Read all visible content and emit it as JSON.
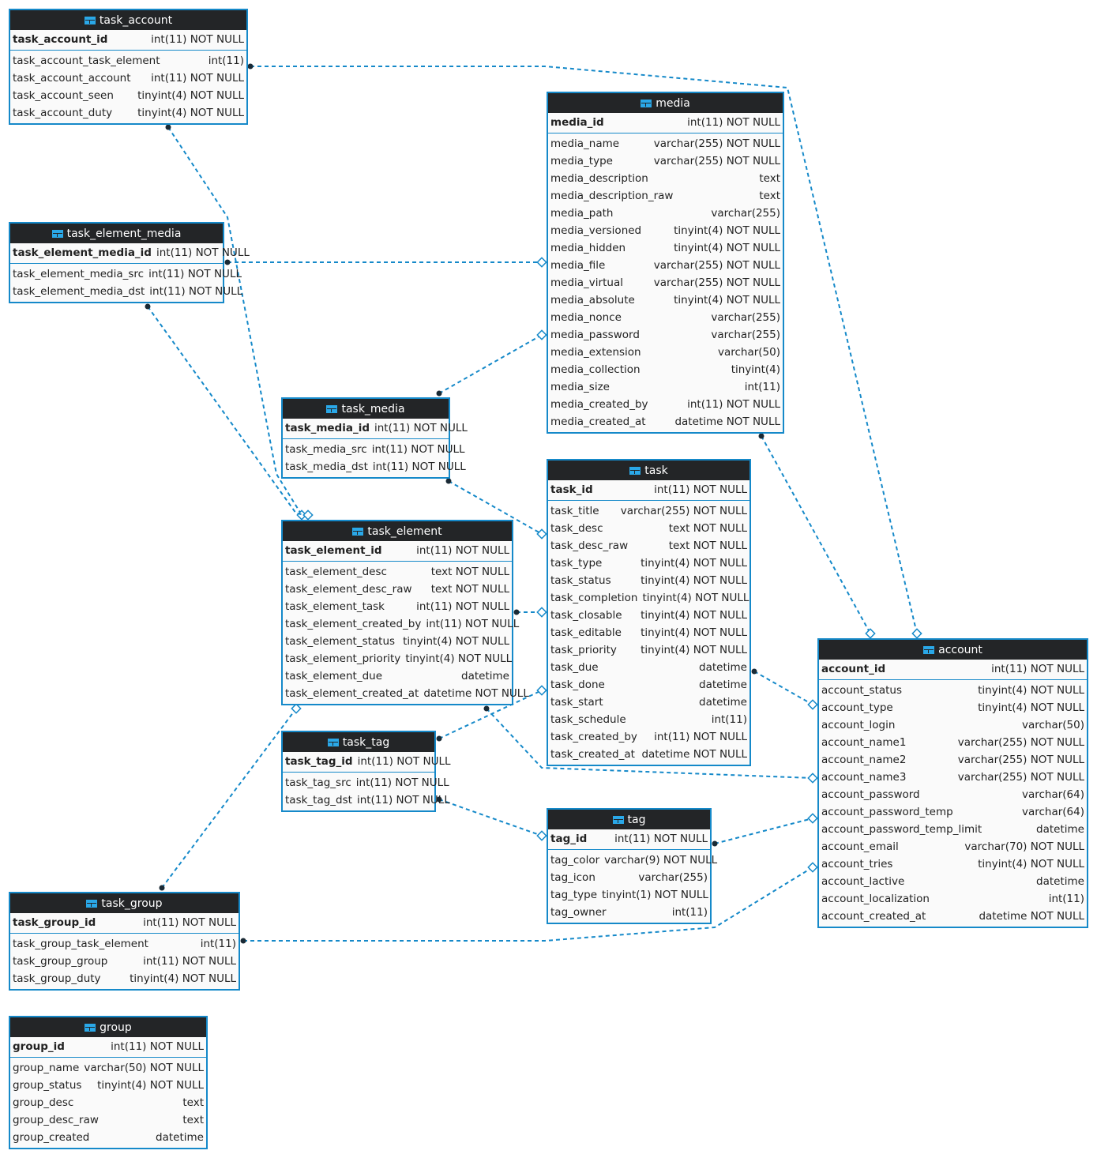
{
  "accent_color": "#1589c9",
  "header_color": "#232527",
  "table_icon": "table-icon",
  "tables": [
    {
      "name": "task_account",
      "pk": [
        "task_account_id",
        "int(11) NOT NULL"
      ],
      "columns": [
        [
          "task_account_task_element",
          "int(11)"
        ],
        [
          "task_account_account",
          "int(11) NOT NULL"
        ],
        [
          "task_account_seen",
          "tinyint(4) NOT NULL"
        ],
        [
          "task_account_duty",
          "tinyint(4) NOT NULL"
        ]
      ]
    },
    {
      "name": "task_element_media",
      "pk": [
        "task_element_media_id",
        "int(11) NOT NULL"
      ],
      "columns": [
        [
          "task_element_media_src",
          "int(11) NOT NULL"
        ],
        [
          "task_element_media_dst",
          "int(11) NOT NULL"
        ]
      ]
    },
    {
      "name": "task_media",
      "pk": [
        "task_media_id",
        "int(11) NOT NULL"
      ],
      "columns": [
        [
          "task_media_src",
          "int(11) NOT NULL"
        ],
        [
          "task_media_dst",
          "int(11) NOT NULL"
        ]
      ]
    },
    {
      "name": "task_element",
      "pk": [
        "task_element_id",
        "int(11) NOT NULL"
      ],
      "columns": [
        [
          "task_element_desc",
          "text NOT NULL"
        ],
        [
          "task_element_desc_raw",
          "text NOT NULL"
        ],
        [
          "task_element_task",
          "int(11) NOT NULL"
        ],
        [
          "task_element_created_by",
          "int(11) NOT NULL"
        ],
        [
          "task_element_status",
          "tinyint(4) NOT NULL"
        ],
        [
          "task_element_priority",
          "tinyint(4) NOT NULL"
        ],
        [
          "task_element_due",
          "datetime"
        ],
        [
          "task_element_created_at",
          "datetime NOT NULL"
        ]
      ]
    },
    {
      "name": "task_tag",
      "pk": [
        "task_tag_id",
        "int(11) NOT NULL"
      ],
      "columns": [
        [
          "task_tag_src",
          "int(11) NOT NULL"
        ],
        [
          "task_tag_dst",
          "int(11) NOT NULL"
        ]
      ]
    },
    {
      "name": "task_group",
      "pk": [
        "task_group_id",
        "int(11) NOT NULL"
      ],
      "columns": [
        [
          "task_group_task_element",
          "int(11)"
        ],
        [
          "task_group_group",
          "int(11) NOT NULL"
        ],
        [
          "task_group_duty",
          "tinyint(4) NOT NULL"
        ]
      ]
    },
    {
      "name": "group",
      "pk": [
        "group_id",
        "int(11) NOT NULL"
      ],
      "columns": [
        [
          "group_name",
          "varchar(50) NOT NULL"
        ],
        [
          "group_status",
          "tinyint(4) NOT NULL"
        ],
        [
          "group_desc",
          "text"
        ],
        [
          "group_desc_raw",
          "text"
        ],
        [
          "group_created",
          "datetime"
        ]
      ]
    },
    {
      "name": "media",
      "pk": [
        "media_id",
        "int(11) NOT NULL"
      ],
      "columns": [
        [
          "media_name",
          "varchar(255) NOT NULL"
        ],
        [
          "media_type",
          "varchar(255) NOT NULL"
        ],
        [
          "media_description",
          "text"
        ],
        [
          "media_description_raw",
          "text"
        ],
        [
          "media_path",
          "varchar(255)"
        ],
        [
          "media_versioned",
          "tinyint(4) NOT NULL"
        ],
        [
          "media_hidden",
          "tinyint(4) NOT NULL"
        ],
        [
          "media_file",
          "varchar(255) NOT NULL"
        ],
        [
          "media_virtual",
          "varchar(255) NOT NULL"
        ],
        [
          "media_absolute",
          "tinyint(4) NOT NULL"
        ],
        [
          "media_nonce",
          "varchar(255)"
        ],
        [
          "media_password",
          "varchar(255)"
        ],
        [
          "media_extension",
          "varchar(50)"
        ],
        [
          "media_collection",
          "tinyint(4)"
        ],
        [
          "media_size",
          "int(11)"
        ],
        [
          "media_created_by",
          "int(11) NOT NULL"
        ],
        [
          "media_created_at",
          "datetime NOT NULL"
        ]
      ]
    },
    {
      "name": "task",
      "pk": [
        "task_id",
        "int(11) NOT NULL"
      ],
      "columns": [
        [
          "task_title",
          "varchar(255) NOT NULL"
        ],
        [
          "task_desc",
          "text NOT NULL"
        ],
        [
          "task_desc_raw",
          "text NOT NULL"
        ],
        [
          "task_type",
          "tinyint(4) NOT NULL"
        ],
        [
          "task_status",
          "tinyint(4) NOT NULL"
        ],
        [
          "task_completion",
          "tinyint(4) NOT NULL"
        ],
        [
          "task_closable",
          "tinyint(4) NOT NULL"
        ],
        [
          "task_editable",
          "tinyint(4) NOT NULL"
        ],
        [
          "task_priority",
          "tinyint(4) NOT NULL"
        ],
        [
          "task_due",
          "datetime"
        ],
        [
          "task_done",
          "datetime"
        ],
        [
          "task_start",
          "datetime"
        ],
        [
          "task_schedule",
          "int(11)"
        ],
        [
          "task_created_by",
          "int(11) NOT NULL"
        ],
        [
          "task_created_at",
          "datetime NOT NULL"
        ]
      ]
    },
    {
      "name": "tag",
      "pk": [
        "tag_id",
        "int(11) NOT NULL"
      ],
      "columns": [
        [
          "tag_color",
          "varchar(9) NOT NULL"
        ],
        [
          "tag_icon",
          "varchar(255)"
        ],
        [
          "tag_type",
          "tinyint(1) NOT NULL"
        ],
        [
          "tag_owner",
          "int(11)"
        ]
      ]
    },
    {
      "name": "account",
      "pk": [
        "account_id",
        "int(11) NOT NULL"
      ],
      "columns": [
        [
          "account_status",
          "tinyint(4) NOT NULL"
        ],
        [
          "account_type",
          "tinyint(4) NOT NULL"
        ],
        [
          "account_login",
          "varchar(50)"
        ],
        [
          "account_name1",
          "varchar(255) NOT NULL"
        ],
        [
          "account_name2",
          "varchar(255) NOT NULL"
        ],
        [
          "account_name3",
          "varchar(255) NOT NULL"
        ],
        [
          "account_password",
          "varchar(64)"
        ],
        [
          "account_password_temp",
          "varchar(64)"
        ],
        [
          "account_password_temp_limit",
          "datetime"
        ],
        [
          "account_email",
          "varchar(70) NOT NULL"
        ],
        [
          "account_tries",
          "tinyint(4) NOT NULL"
        ],
        [
          "account_lactive",
          "datetime"
        ],
        [
          "account_localization",
          "int(11)"
        ],
        [
          "account_created_at",
          "datetime NOT NULL"
        ]
      ]
    }
  ],
  "relations": [
    [
      "task_account",
      "account"
    ],
    [
      "task_account",
      "task_element"
    ],
    [
      "task_element_media",
      "media"
    ],
    [
      "task_element_media",
      "task_element"
    ],
    [
      "task_media",
      "media"
    ],
    [
      "task_media",
      "task"
    ],
    [
      "task_element",
      "task"
    ],
    [
      "media",
      "account"
    ],
    [
      "task",
      "account"
    ],
    [
      "task_element",
      "account"
    ],
    [
      "task_tag",
      "task"
    ],
    [
      "task_tag",
      "tag"
    ],
    [
      "tag",
      "account"
    ],
    [
      "task_group",
      "task_element"
    ],
    [
      "task_group",
      "account"
    ]
  ]
}
